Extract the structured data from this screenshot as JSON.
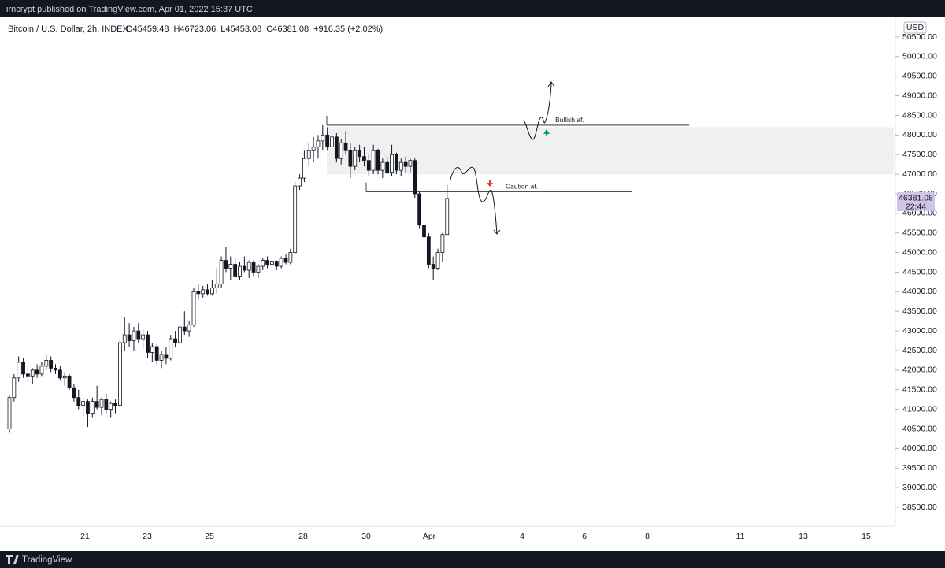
{
  "header": {
    "text": "irncrypt published on TradingView.com, Apr 01, 2022 15:37 UTC"
  },
  "footer": {
    "brand": "TradingView"
  },
  "chart_data": {
    "type": "candlestick",
    "title": "Bitcoin / U.S. Dollar, 2h, INDEX",
    "legend_values": [
      "O45459.48",
      "H46723.06",
      "L45453.08",
      "C46381.08",
      "+916.35 (+2.02%)"
    ],
    "currency": "USD",
    "up_color": "#ffffff",
    "down_color": "#131722",
    "ylim": [
      37800,
      51000
    ],
    "yticks": [
      {
        "value": 38500,
        "label": "38500.00"
      },
      {
        "value": 39000,
        "label": "39000.00"
      },
      {
        "value": 39500,
        "label": "39500.00"
      },
      {
        "value": 40000,
        "label": "40000.00"
      },
      {
        "value": 40500,
        "label": "40500.00"
      },
      {
        "value": 41000,
        "label": "41000.00"
      },
      {
        "value": 41500,
        "label": "41500.00"
      },
      {
        "value": 42000,
        "label": "42000.00"
      },
      {
        "value": 42500,
        "label": "42500.00"
      },
      {
        "value": 43000,
        "label": "43000.00"
      },
      {
        "value": 43500,
        "label": "43500.00"
      },
      {
        "value": 44000,
        "label": "44000.00"
      },
      {
        "value": 44500,
        "label": "44500.00"
      },
      {
        "value": 45000,
        "label": "45000.00"
      },
      {
        "value": 45500,
        "label": "45500.00"
      },
      {
        "value": 46000,
        "label": "46000.00"
      },
      {
        "value": 46500,
        "label": "46500.00"
      },
      {
        "value": 47000,
        "label": "47000.00"
      },
      {
        "value": 47500,
        "label": "47500.00"
      },
      {
        "value": 48000,
        "label": "48000.00"
      },
      {
        "value": 48500,
        "label": "48500.00"
      },
      {
        "value": 49000,
        "label": "49000.00"
      },
      {
        "value": 49500,
        "label": "49500.00"
      },
      {
        "value": 50000,
        "label": "50000.00"
      },
      {
        "value": 50500,
        "label": "50500.00"
      }
    ],
    "xtick_labels": [
      "21",
      "23",
      "25",
      "28",
      "30",
      "Apr",
      "4",
      "6",
      "8",
      "11",
      "13",
      "15"
    ],
    "last_price": 46381.08,
    "countdown": "22:44",
    "zone": [
      47000,
      48200
    ],
    "zone_color": "#f0f0f0",
    "annotations": [
      {
        "text": "Bullish af.",
        "value": 48250
      },
      {
        "text": "Caution af.",
        "value": 46550
      }
    ],
    "ohlc": [
      [
        40500,
        41350,
        40400,
        41300
      ],
      [
        41300,
        41900,
        41200,
        41800
      ],
      [
        41800,
        42350,
        41700,
        42200
      ],
      [
        42200,
        42300,
        41800,
        41900
      ],
      [
        41900,
        42100,
        41700,
        41850
      ],
      [
        41850,
        42050,
        41650,
        42000
      ],
      [
        42000,
        42150,
        41800,
        41900
      ],
      [
        41900,
        42200,
        41850,
        42100
      ],
      [
        42100,
        42400,
        42000,
        42250
      ],
      [
        42250,
        42350,
        41950,
        42050
      ],
      [
        42050,
        42150,
        41900,
        42000
      ],
      [
        42000,
        42100,
        41750,
        41800
      ],
      [
        41800,
        41950,
        41600,
        41850
      ],
      [
        41850,
        41900,
        41500,
        41550
      ],
      [
        41550,
        41650,
        41200,
        41300
      ],
      [
        41300,
        41500,
        41000,
        41100
      ],
      [
        41100,
        41300,
        40800,
        41200
      ],
      [
        41200,
        41250,
        40550,
        40900
      ],
      [
        40900,
        41300,
        40800,
        41200
      ],
      [
        41200,
        41600,
        41000,
        41050
      ],
      [
        41050,
        41300,
        40850,
        41250
      ],
      [
        41250,
        41400,
        40900,
        41000
      ],
      [
        41000,
        41200,
        40800,
        41150
      ],
      [
        41150,
        41250,
        40900,
        41100
      ],
      [
        41100,
        42800,
        41050,
        42700
      ],
      [
        42700,
        43350,
        42500,
        42900
      ],
      [
        42900,
        43200,
        42600,
        42750
      ],
      [
        42750,
        43100,
        42500,
        43000
      ],
      [
        43000,
        43200,
        42700,
        42800
      ],
      [
        42800,
        43050,
        42550,
        42900
      ],
      [
        42900,
        43000,
        42300,
        42450
      ],
      [
        42450,
        42700,
        42200,
        42600
      ],
      [
        42600,
        42650,
        42150,
        42250
      ],
      [
        42250,
        42500,
        42050,
        42400
      ],
      [
        42400,
        42600,
        42150,
        42300
      ],
      [
        42300,
        42900,
        42250,
        42800
      ],
      [
        42800,
        43000,
        42600,
        42700
      ],
      [
        42700,
        43200,
        42650,
        43100
      ],
      [
        43100,
        43500,
        42900,
        43000
      ],
      [
        43000,
        43250,
        42850,
        43150
      ],
      [
        43150,
        44100,
        43100,
        44000
      ],
      [
        44000,
        44200,
        43800,
        43950
      ],
      [
        43950,
        44150,
        43850,
        44050
      ],
      [
        44050,
        44200,
        43900,
        43950
      ],
      [
        43950,
        44300,
        43900,
        44100
      ],
      [
        44100,
        44600,
        43950,
        44200
      ],
      [
        44200,
        44900,
        44100,
        44800
      ],
      [
        44800,
        45150,
        44500,
        44600
      ],
      [
        44600,
        44900,
        44300,
        44700
      ],
      [
        44700,
        44850,
        44350,
        44400
      ],
      [
        44400,
        44750,
        44300,
        44650
      ],
      [
        44650,
        44900,
        44500,
        44550
      ],
      [
        44550,
        44800,
        44350,
        44750
      ],
      [
        44750,
        44800,
        44400,
        44500
      ],
      [
        44500,
        44700,
        44350,
        44650
      ],
      [
        44650,
        44850,
        44550,
        44800
      ],
      [
        44800,
        44900,
        44600,
        44700
      ],
      [
        44700,
        44850,
        44600,
        44780
      ],
      [
        44780,
        44800,
        44550,
        44650
      ],
      [
        44650,
        44900,
        44600,
        44850
      ],
      [
        44850,
        44950,
        44700,
        44750
      ],
      [
        44750,
        45100,
        44700,
        45000
      ],
      [
        45000,
        46800,
        44950,
        46700
      ],
      [
        46700,
        47000,
        46600,
        46900
      ],
      [
        46900,
        47600,
        46800,
        47400
      ],
      [
        47400,
        47800,
        47200,
        47600
      ],
      [
        47600,
        47950,
        47300,
        47700
      ],
      [
        47700,
        48000,
        47400,
        47850
      ],
      [
        47850,
        48250,
        47600,
        48000
      ],
      [
        48000,
        48200,
        47600,
        47700
      ],
      [
        47700,
        48150,
        47500,
        47950
      ],
      [
        47950,
        48050,
        47300,
        47400
      ],
      [
        47400,
        47900,
        47250,
        47800
      ],
      [
        47800,
        48100,
        47500,
        47600
      ],
      [
        47600,
        47800,
        46900,
        47200
      ],
      [
        47200,
        47700,
        47100,
        47600
      ],
      [
        47600,
        47750,
        47300,
        47450
      ],
      [
        47450,
        47700,
        47200,
        47350
      ],
      [
        47350,
        47500,
        46950,
        47100
      ],
      [
        47100,
        47750,
        47000,
        47600
      ],
      [
        47600,
        47650,
        47000,
        47100
      ],
      [
        47100,
        47400,
        46900,
        47300
      ],
      [
        47300,
        47450,
        47000,
        47050
      ],
      [
        47050,
        47750,
        46950,
        47500
      ],
      [
        47500,
        47550,
        47000,
        47100
      ],
      [
        47100,
        47400,
        46950,
        47300
      ],
      [
        47300,
        47450,
        47050,
        47200
      ],
      [
        47200,
        47400,
        47050,
        47350
      ],
      [
        47350,
        47400,
        46400,
        46500
      ],
      [
        46500,
        46550,
        45600,
        45700
      ],
      [
        45700,
        45900,
        45300,
        45400
      ],
      [
        45400,
        45500,
        44600,
        44700
      ],
      [
        44700,
        44900,
        44300,
        44600
      ],
      [
        44600,
        45100,
        44550,
        45000
      ],
      [
        45000,
        45500,
        44750,
        45459
      ],
      [
        45459.48,
        46723.06,
        45453.08,
        46381.08
      ]
    ]
  }
}
